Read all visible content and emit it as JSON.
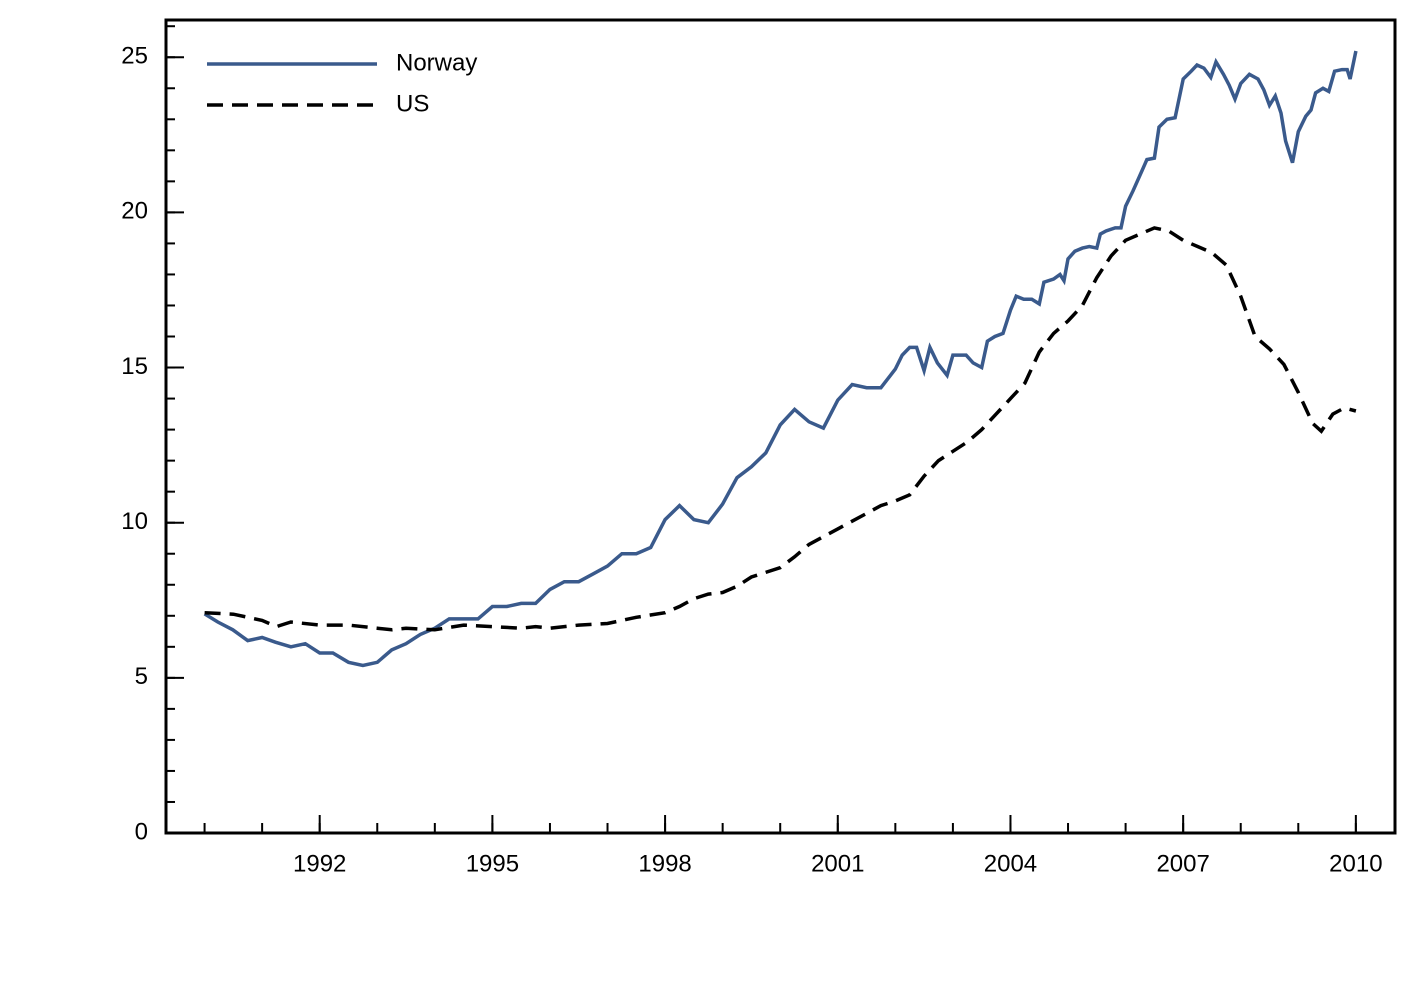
{
  "chart_data": {
    "type": "line",
    "xlim": [
      1989.33,
      2010.68
    ],
    "ylim": [
      0,
      26.2
    ],
    "xticks": [
      1992,
      1995,
      1998,
      2001,
      2004,
      2007,
      2010
    ],
    "yticks": [
      0,
      5,
      10,
      15,
      20,
      25
    ],
    "xminor": 1,
    "yminor": 1,
    "legend": "upper left",
    "series": [
      {
        "name": "Norway",
        "color": "#3a5a8c",
        "dash": "solid",
        "x": [
          1990.0,
          1990.23,
          1990.49,
          1990.75,
          1991.0,
          1991.23,
          1991.5,
          1991.75,
          1992.0,
          1992.23,
          1992.5,
          1992.75,
          1993.0,
          1993.25,
          1993.5,
          1993.75,
          1994.0,
          1994.25,
          1994.5,
          1994.75,
          1995.0,
          1995.25,
          1995.5,
          1995.75,
          1996.0,
          1996.25,
          1996.5,
          1996.75,
          1997.0,
          1997.25,
          1997.5,
          1997.75,
          1998.0,
          1998.25,
          1998.5,
          1998.75,
          1999.0,
          1999.25,
          1999.5,
          1999.75,
          2000.0,
          2000.25,
          2000.5,
          2000.75,
          2001.0,
          2001.25,
          2001.5,
          2001.75,
          2002.0,
          2002.12,
          2002.25,
          2002.37,
          2002.5,
          2002.6,
          2002.73,
          2002.9,
          2003.0,
          2003.23,
          2003.35,
          2003.5,
          2003.6,
          2003.73,
          2003.87,
          2004.0,
          2004.1,
          2004.23,
          2004.37,
          2004.5,
          2004.58,
          2004.75,
          2004.86,
          2004.93,
          2005.0,
          2005.12,
          2005.25,
          2005.37,
          2005.5,
          2005.56,
          2005.66,
          2005.82,
          2005.92,
          2006.0,
          2006.13,
          2006.25,
          2006.37,
          2006.5,
          2006.58,
          2006.72,
          2006.86,
          2007.0,
          2007.14,
          2007.24,
          2007.36,
          2007.48,
          2007.57,
          2007.7,
          2007.8,
          2007.9,
          2008.0,
          2008.15,
          2008.3,
          2008.4,
          2008.5,
          2008.6,
          2008.7,
          2008.78,
          2008.9,
          2009.0,
          2009.13,
          2009.22,
          2009.3,
          2009.43,
          2009.53,
          2009.63,
          2009.76,
          2009.85,
          2009.9,
          2010.0
        ],
        "values": [
          7.06,
          6.8,
          6.55,
          6.2,
          6.3,
          6.15,
          6.0,
          6.1,
          5.8,
          5.8,
          5.5,
          5.4,
          5.5,
          5.9,
          6.1,
          6.4,
          6.6,
          6.9,
          6.9,
          6.9,
          7.3,
          7.3,
          7.4,
          7.4,
          7.85,
          8.1,
          8.1,
          8.35,
          8.6,
          9.0,
          9.0,
          9.2,
          10.1,
          10.55,
          10.1,
          10.0,
          10.6,
          11.45,
          11.8,
          12.25,
          13.15,
          13.65,
          13.25,
          13.05,
          13.95,
          14.45,
          14.35,
          14.35,
          14.95,
          15.4,
          15.65,
          15.65,
          14.9,
          15.65,
          15.15,
          14.75,
          15.4,
          15.4,
          15.15,
          15.0,
          15.85,
          16.0,
          16.1,
          16.85,
          17.3,
          17.2,
          17.2,
          17.05,
          17.75,
          17.85,
          18.0,
          17.8,
          18.5,
          18.75,
          18.85,
          18.9,
          18.85,
          19.3,
          19.4,
          19.5,
          19.5,
          20.2,
          20.7,
          21.2,
          21.7,
          21.75,
          22.75,
          23.0,
          23.05,
          24.3,
          24.55,
          24.75,
          24.65,
          24.35,
          24.85,
          24.45,
          24.1,
          23.65,
          24.15,
          24.45,
          24.3,
          23.95,
          23.45,
          23.75,
          23.2,
          22.3,
          21.6,
          22.6,
          23.1,
          23.3,
          23.85,
          24.0,
          23.9,
          24.55,
          24.6,
          24.6,
          24.3,
          25.2
        ]
      },
      {
        "name": "US",
        "color": "#000000",
        "dash": "dashed",
        "x": [
          1990.0,
          1990.5,
          1991.0,
          1991.25,
          1991.5,
          1992.0,
          1992.5,
          1993.0,
          1993.25,
          1993.5,
          1994.0,
          1994.5,
          1995.0,
          1995.5,
          1995.75,
          1996.0,
          1996.5,
          1997.0,
          1997.5,
          1998.0,
          1998.25,
          1998.5,
          1998.75,
          1999.0,
          1999.25,
          1999.5,
          2000.0,
          2000.25,
          2000.5,
          2001.0,
          2001.5,
          2001.75,
          2002.0,
          2002.25,
          2002.5,
          2002.75,
          2003.0,
          2003.25,
          2003.5,
          2003.75,
          2004.0,
          2004.25,
          2004.5,
          2004.75,
          2005.0,
          2005.25,
          2005.5,
          2005.75,
          2006.0,
          2006.25,
          2006.5,
          2006.75,
          2007.0,
          2007.25,
          2007.5,
          2007.75,
          2008.0,
          2008.25,
          2008.5,
          2008.75,
          2009.0,
          2009.25,
          2009.4,
          2009.6,
          2009.8,
          2010.0
        ],
        "values": [
          7.1,
          7.05,
          6.85,
          6.65,
          6.8,
          6.7,
          6.7,
          6.6,
          6.55,
          6.6,
          6.55,
          6.7,
          6.65,
          6.6,
          6.65,
          6.6,
          6.7,
          6.75,
          6.95,
          7.1,
          7.3,
          7.55,
          7.7,
          7.75,
          7.95,
          8.25,
          8.55,
          8.9,
          9.3,
          9.8,
          10.3,
          10.55,
          10.7,
          10.9,
          11.5,
          12.0,
          12.3,
          12.6,
          13.0,
          13.5,
          14.0,
          14.5,
          15.5,
          16.1,
          16.5,
          17.0,
          17.9,
          18.6,
          19.1,
          19.3,
          19.5,
          19.4,
          19.1,
          18.9,
          18.7,
          18.3,
          17.3,
          16.0,
          15.6,
          15.1,
          14.2,
          13.2,
          12.95,
          13.5,
          13.7,
          13.6
        ]
      }
    ]
  }
}
